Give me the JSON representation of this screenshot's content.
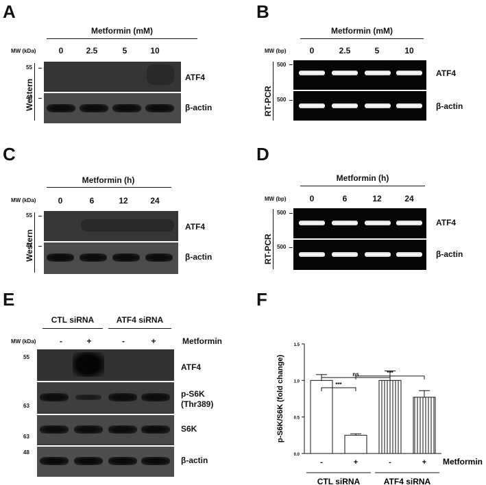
{
  "panels": {
    "A": {
      "letter": "A",
      "header": "Metformin (mM)",
      "mw_label": "MW (kDa)",
      "lanes": [
        "0",
        "2.5",
        "5",
        "10"
      ],
      "method": "Western",
      "markers": [
        "55",
        "48"
      ],
      "rows": [
        "ATF4",
        "β-actin"
      ]
    },
    "B": {
      "letter": "B",
      "header": "Metformin (mM)",
      "mw_label": "MW (bp)",
      "lanes": [
        "0",
        "2.5",
        "5",
        "10"
      ],
      "method": "RT-PCR",
      "markers": [
        "500",
        "500"
      ],
      "rows": [
        "ATF4",
        "β-actin"
      ]
    },
    "C": {
      "letter": "C",
      "header": "Metformin (h)",
      "mw_label": "MW (kDa)",
      "lanes": [
        "0",
        "6",
        "12",
        "24"
      ],
      "method": "Western",
      "markers": [
        "55",
        "48"
      ],
      "rows": [
        "ATF4",
        "β-actin"
      ]
    },
    "D": {
      "letter": "D",
      "header": "Metformin (h)",
      "mw_label": "MW (bp)",
      "lanes": [
        "0",
        "6",
        "12",
        "24"
      ],
      "method": "RT-PCR",
      "markers": [
        "500",
        "500"
      ],
      "rows": [
        "ATF4",
        "β-actin"
      ]
    },
    "E": {
      "letter": "E",
      "groups": [
        "CTL siRNA",
        "ATF4 siRNA"
      ],
      "mw_label": "MW (kDa)",
      "lanes": [
        "-",
        "+",
        "-",
        "+"
      ],
      "treatment": "Metformin",
      "markers": [
        "55",
        "63",
        "63",
        "48"
      ],
      "rows": [
        "ATF4",
        "p-S6K",
        "(Thr389)",
        "S6K",
        "β-actin"
      ]
    },
    "F": {
      "letter": "F"
    }
  },
  "chart_data": {
    "type": "bar",
    "ylabel": "p-S6K/S6K (fold change)",
    "ylim": [
      0,
      1.5
    ],
    "yticks": [
      "0.0",
      "0.5",
      "1.0",
      "1.5"
    ],
    "categories": [
      "-",
      "+",
      "-",
      "+"
    ],
    "treatment_label": "Metformin",
    "groups": [
      "CTL siRNA",
      "ATF4 siRNA"
    ],
    "values": [
      1.0,
      0.25,
      1.0,
      0.77
    ],
    "errors": [
      0.08,
      0.02,
      0.13,
      0.09
    ],
    "fill": [
      "open",
      "open",
      "striped",
      "striped"
    ],
    "significance": [
      {
        "from": 0,
        "to": 1,
        "label": "***"
      },
      {
        "from": 0,
        "to": 2,
        "label": "ns"
      },
      {
        "from": 1,
        "to": 3,
        "label": "***"
      }
    ]
  }
}
